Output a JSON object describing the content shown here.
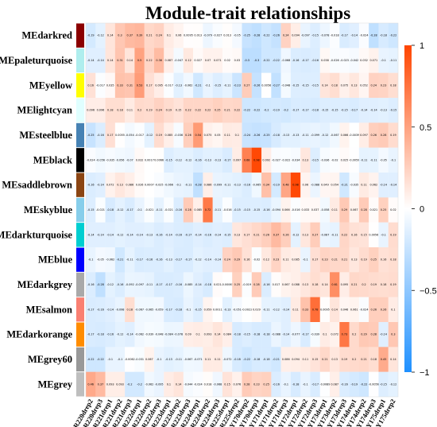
{
  "chart_data": {
    "type": "heatmap",
    "title": "Module-trait relationships",
    "rows": [
      "MEdarkred",
      "MEpaleturquoise",
      "MEyellow",
      "MElightcyan",
      "MEsteelblue",
      "MEblack",
      "MEsaddlebrown",
      "MEskyblue",
      "MEdarkturquoise",
      "MEblue",
      "MEdarkgrey",
      "MEsalmon",
      "MEdarkorange",
      "MEgrey60",
      "MEgrey"
    ],
    "row_colors": [
      "#8b0000",
      "#afeeee",
      "#ffff00",
      "#e0ffff",
      "#4682b4",
      "#000000",
      "#8b4513",
      "#87ceeb",
      "#00ced1",
      "#0000ff",
      "#a9a9a9",
      "#fa8072",
      "#ff8c00",
      "#999999",
      "#bebebe"
    ],
    "columns": [
      "R220drep2",
      "R220drep3",
      "R221drep1",
      "R221drep2",
      "R221drep3",
      "R222drep1",
      "R222drep2",
      "R222drep3",
      "R223drep1",
      "R223drep2",
      "R223drep3",
      "R224drep1",
      "R224drep2",
      "R224drep3",
      "R225drep1",
      "R225drep2",
      "Y170drep2",
      "Y170drep3",
      "Y171drep1",
      "Y171drep2",
      "Y171drep3",
      "Y172drep1",
      "Y172drep2",
      "Y172drep3",
      "Y173drep1",
      "Y173drep2",
      "Y173drep3",
      "Y174drep1",
      "Y174drep2",
      "Y174drep3",
      "Y175drep1",
      "Y175drep2"
    ],
    "values": [
      [
        -0.19,
        -0.12,
        0.14,
        0.3,
        0.37,
        0.39,
        0.21,
        0.24,
        0.1,
        0.06,
        0.0095,
        0.013,
        -0.079,
        -0.027,
        0.013,
        -0.05,
        -0.25,
        -0.28,
        -0.22,
        -0.26,
        0.24,
        0.094,
        -0.097,
        -0.15,
        -0.078,
        -0.018,
        -0.17,
        -0.14,
        -0.024,
        -0.28,
        -0.18,
        -0.22
      ],
      [
        -0.14,
        -0.14,
        0.14,
        0.31,
        0.14,
        0.5,
        0.22,
        0.36,
        0.087,
        -0.047,
        0.12,
        0.027,
        0.07,
        0.071,
        0.02,
        0.03,
        -0.3,
        -0.3,
        -0.22,
        -0.22,
        -0.068,
        -0.16,
        -0.17,
        -0.16,
        0.038,
        -0.026,
        -0.023,
        -0.042,
        0.032,
        0.071,
        -0.1,
        -0.11
      ],
      [
        0.16,
        -0.017,
        0.035,
        0.33,
        0.31,
        0.53,
        0.17,
        0.095,
        -0.017,
        -0.13,
        -0.062,
        -0.21,
        -0.1,
        -0.15,
        -0.11,
        -0.23,
        0.27,
        -0.26,
        0.0056,
        -0.27,
        -0.048,
        -0.15,
        -0.15,
        -0.15,
        0.14,
        0.18,
        0.075,
        0.13,
        0.052,
        0.24,
        0.23,
        0.18
      ],
      [
        0.096,
        0.096,
        0.18,
        0.18,
        0.11,
        0.2,
        0.19,
        0.24,
        0.19,
        0.15,
        0.22,
        0.22,
        0.22,
        0.25,
        0.21,
        0.22,
        -0.22,
        -0.22,
        -0.2,
        -0.19,
        -0.2,
        -0.17,
        -0.17,
        -0.18,
        -0.15,
        -0.15,
        -0.15,
        -0.17,
        -0.14,
        -0.14,
        -0.13,
        -0.15
      ],
      [
        -0.25,
        -0.16,
        0.17,
        0.0055,
        -0.054,
        -0.017,
        -0.12,
        0.19,
        0.085,
        -0.036,
        0.26,
        0.54,
        0.075,
        0.05,
        0.11,
        0.1,
        -0.24,
        -0.26,
        -0.25,
        -0.18,
        -0.13,
        -0.13,
        -0.11,
        -0.099,
        -0.12,
        -0.067,
        0.066,
        -0.0039,
        0.097,
        0.26,
        0.28,
        0.19
      ],
      [
        -0.024,
        -0.056,
        -0.035,
        -0.056,
        -0.07,
        0.032,
        0.0017,
        0.0066,
        -0.15,
        -0.12,
        -0.12,
        -0.16,
        -0.13,
        -0.13,
        -0.17,
        0.097,
        0.68,
        0.98,
        0.092,
        -0.027,
        -0.022,
        -0.034,
        0.13,
        -0.15,
        -0.036,
        -0.02,
        0.025,
        -0.0059,
        -0.11,
        -0.11,
        -0.05,
        -0.1
      ],
      [
        -0.16,
        -0.14,
        0.072,
        0.13,
        0.086,
        0.026,
        0.0007,
        -0.025,
        -0.066,
        -0.1,
        -0.11,
        -0.28,
        0.086,
        -0.099,
        -0.11,
        -0.13,
        -0.16,
        -0.065,
        0.34,
        -0.19,
        0.48,
        0.98,
        0.06,
        -0.088,
        0.049,
        0.054,
        -0.21,
        -0.035,
        0.11,
        0.062,
        -0.14,
        -0.14
      ],
      [
        -0.15,
        -0.021,
        -0.18,
        -0.12,
        -0.17,
        -0.1,
        -0.021,
        -0.11,
        -0.021,
        -0.16,
        0.28,
        0.085,
        0.72,
        -0.11,
        -0.016,
        -0.15,
        -0.15,
        -0.15,
        -0.16,
        -0.094,
        0.066,
        -0.016,
        0.033,
        0.037,
        -0.058,
        0.11,
        0.29,
        0.067,
        0.28,
        0.021,
        0.25,
        0.02
      ],
      [
        -0.14,
        -0.14,
        -0.14,
        -0.12,
        -0.14,
        -0.14,
        -0.13,
        -0.16,
        -0.14,
        -0.16,
        -0.17,
        -0.14,
        -0.16,
        -0.14,
        -0.15,
        0.13,
        0.17,
        0.21,
        0.26,
        0.37,
        0.26,
        -0.12,
        0.13,
        0.27,
        -0.087,
        -0.11,
        0.22,
        0.16,
        0.15,
        0.0056,
        -0.1,
        0.19
      ],
      [
        -0.1,
        -0.05,
        -0.062,
        -0.21,
        -0.11,
        -0.17,
        -0.16,
        -0.16,
        -0.13,
        -0.17,
        -0.17,
        -0.12,
        -0.14,
        -0.14,
        0.24,
        0.29,
        0.16,
        -0.02,
        0.12,
        0.23,
        0.11,
        0.085,
        -0.1,
        0.17,
        0.23,
        0.21,
        0.21,
        0.13,
        0.19,
        0.25,
        0.16,
        0.18
      ],
      [
        -0.16,
        -0.28,
        -0.12,
        -0.16,
        -0.092,
        -0.097,
        -0.11,
        -0.17,
        -0.17,
        -0.16,
        -0.085,
        -0.14,
        -0.18,
        0.021,
        -0.00065,
        0.25,
        -0.019,
        0.28,
        -0.16,
        0.017,
        0.067,
        0.088,
        0.13,
        0.18,
        0.14,
        0.61,
        0.095,
        0.21,
        0.2,
        0.19,
        0.18,
        0.19
      ],
      [
        -0.17,
        -0.16,
        -0.14,
        -0.098,
        0.18,
        -0.067,
        -0.065,
        -0.059,
        -0.17,
        -0.18,
        -0.1,
        -0.15,
        0.059,
        0.0011,
        -0.13,
        -0.051,
        -0.0023,
        0.029,
        -0.11,
        -0.12,
        -0.14,
        0.11,
        0.33,
        0.78,
        0.0095,
        0.14,
        0.046,
        0.061,
        -0.024,
        0.26,
        0.26,
        0.1
      ],
      [
        -0.17,
        -0.18,
        -0.16,
        -0.12,
        -0.14,
        -0.062,
        -0.039,
        -0.048,
        -0.084,
        -0.078,
        0.09,
        0.1,
        0.093,
        0.14,
        0.084,
        -0.18,
        -0.15,
        -0.18,
        -0.18,
        -0.088,
        -0.14,
        -0.077,
        -0.17,
        -0.039,
        0.1,
        0.072,
        0.73,
        0.2,
        0.29,
        0.28,
        -0.14,
        0.3
      ],
      [
        -0.22,
        -0.22,
        -0.1,
        -0.1,
        -0.0062,
        -0.031,
        0.067,
        -0.1,
        -0.13,
        -0.11,
        -0.067,
        -0.071,
        0.11,
        0.11,
        -0.072,
        -0.18,
        -0.22,
        -0.18,
        -0.18,
        -0.21,
        0.086,
        0.094,
        0.11,
        0.15,
        0.21,
        0.13,
        0.19,
        0.2,
        0.21,
        0.18,
        0.45,
        0.14
      ],
      [
        0.46,
        0.37,
        0.093,
        0.093,
        -0.2,
        -0.2,
        -0.062,
        -0.095,
        0.1,
        0.14,
        -0.044,
        -0.024,
        0.018,
        -0.068,
        0.15,
        0.076,
        0.28,
        0.23,
        0.25,
        -0.16,
        -0.1,
        -0.18,
        -0.1,
        -0.17,
        -0.0089,
        0.087,
        -0.16,
        -0.19,
        -0.22,
        -0.0056,
        -0.15,
        -0.12
      ]
    ],
    "colorbar_ticks": [
      1,
      0.5,
      0,
      -0.5,
      -1
    ],
    "vlim": [
      -1,
      1
    ],
    "cmap": [
      "#1e90ff",
      "#ffffff",
      "#ff4500"
    ]
  }
}
